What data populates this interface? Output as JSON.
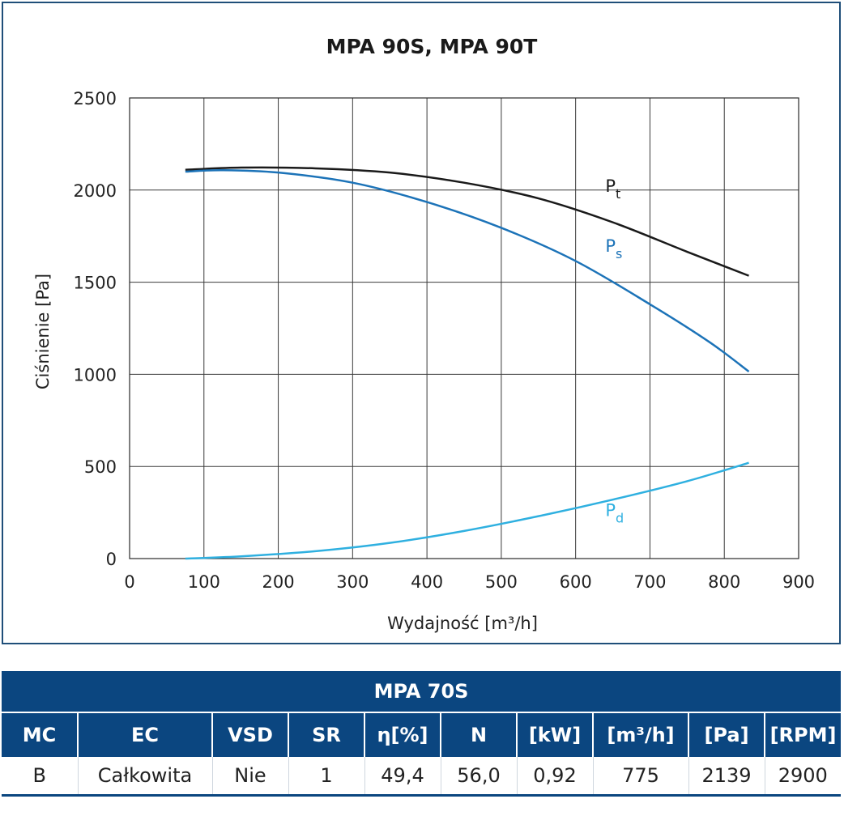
{
  "chart_data": {
    "type": "line",
    "title": "MPA 90S, MPA 90T",
    "xlabel": "Wydajność [m³/h]",
    "ylabel": "Ciśnienie [Pa]",
    "xlim": [
      0,
      900
    ],
    "ylim": [
      0,
      2500
    ],
    "xticks": [
      "0",
      "100",
      "200",
      "300",
      "400",
      "500",
      "600",
      "700",
      "800",
      "900"
    ],
    "yticks": [
      "0",
      "500",
      "1000",
      "1500",
      "2000",
      "2500"
    ],
    "grid": true,
    "series": [
      {
        "name": "Pt",
        "label_main": "P",
        "label_sub": "t",
        "color": "#1a1a1a",
        "label_at": [
          640,
          1990
        ],
        "points": [
          [
            75,
            2110
          ],
          [
            150,
            2122
          ],
          [
            250,
            2118
          ],
          [
            350,
            2095
          ],
          [
            450,
            2040
          ],
          [
            550,
            1955
          ],
          [
            650,
            1825
          ],
          [
            750,
            1665
          ],
          [
            833,
            1535
          ]
        ]
      },
      {
        "name": "Ps",
        "label_main": "P",
        "label_sub": "s",
        "color": "#1c73b8",
        "label_at": [
          640,
          1665
        ],
        "points": [
          [
            75,
            2100
          ],
          [
            125,
            2108
          ],
          [
            200,
            2095
          ],
          [
            300,
            2040
          ],
          [
            400,
            1935
          ],
          [
            500,
            1795
          ],
          [
            600,
            1615
          ],
          [
            700,
            1380
          ],
          [
            780,
            1175
          ],
          [
            833,
            1015
          ]
        ]
      },
      {
        "name": "Pd",
        "label_main": "P",
        "label_sub": "d",
        "color": "#2fb0e0",
        "label_at": [
          640,
          230
        ],
        "points": [
          [
            75,
            0
          ],
          [
            150,
            12
          ],
          [
            250,
            40
          ],
          [
            350,
            85
          ],
          [
            450,
            150
          ],
          [
            550,
            230
          ],
          [
            650,
            320
          ],
          [
            750,
            420
          ],
          [
            833,
            520
          ]
        ]
      }
    ]
  },
  "table": {
    "title": "MPA 70S",
    "headers": [
      "MC",
      "EC",
      "VSD",
      "SR",
      "η[%]",
      "N",
      "[kW]",
      "[m³/h]",
      "[Pa]",
      "[RPM]"
    ],
    "row": [
      "B",
      "Całkowita",
      "Nie",
      "1",
      "49,4",
      "56,0",
      "0,92",
      "775",
      "2139",
      "2900"
    ]
  }
}
